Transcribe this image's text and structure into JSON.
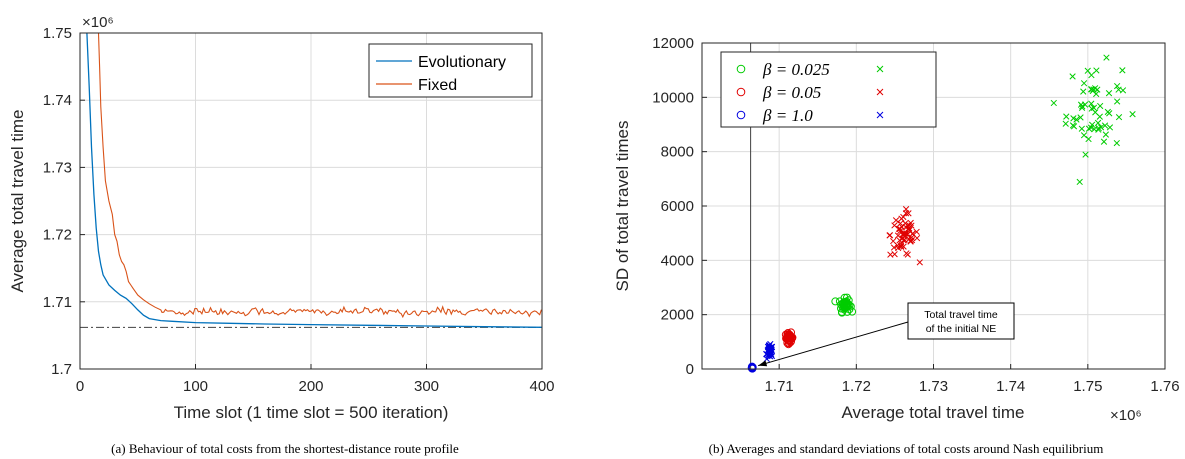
{
  "chart_data": [
    {
      "type": "line",
      "caption": "(a) Behaviour of total costs from the shortest-distance route profile",
      "xlabel": "Time slot (1 time slot = 500 iteration)",
      "ylabel": "Average total travel time",
      "exponent_label": "×10⁶",
      "xlim": [
        0,
        400
      ],
      "ylim": [
        1.7,
        1.75
      ],
      "xticks": [
        0,
        100,
        200,
        300,
        400
      ],
      "yticks": [
        1.7,
        1.71,
        1.72,
        1.73,
        1.74,
        1.75
      ],
      "grid": true,
      "legend_position": "top-right",
      "reference_line": {
        "y": 1.7062,
        "style": "dash-dot",
        "color": "#404040"
      },
      "series": [
        {
          "name": "Evolutionary",
          "color": "#0072BD",
          "x": [
            6,
            8,
            10,
            12,
            14,
            16,
            18,
            20,
            25,
            30,
            35,
            40,
            45,
            50,
            55,
            60,
            70,
            80,
            100,
            130,
            160,
            200,
            250,
            300,
            350,
            400
          ],
          "y": [
            1.75,
            1.742,
            1.733,
            1.726,
            1.721,
            1.7175,
            1.7155,
            1.714,
            1.7125,
            1.7117,
            1.711,
            1.7105,
            1.7097,
            1.7088,
            1.708,
            1.7075,
            1.7072,
            1.7071,
            1.7069,
            1.7068,
            1.7067,
            1.7066,
            1.7065,
            1.7064,
            1.7063,
            1.7062
          ]
        },
        {
          "name": "Fixed",
          "color": "#D95319",
          "x": [
            16,
            17,
            18,
            20,
            22,
            25,
            28,
            30,
            32,
            34,
            36,
            38,
            40,
            42,
            44,
            46,
            48,
            50,
            55,
            60,
            65,
            70
          ],
          "y": [
            1.75,
            1.745,
            1.739,
            1.733,
            1.728,
            1.725,
            1.723,
            1.72,
            1.719,
            1.717,
            1.716,
            1.7155,
            1.7145,
            1.713,
            1.7125,
            1.712,
            1.7115,
            1.711,
            1.7103,
            1.7097,
            1.7092,
            1.7088
          ],
          "noise_from_x": 70,
          "noise_level": 1.7085
        }
      ]
    },
    {
      "type": "scatter",
      "caption": "(b) Averages and standard deviations of total costs around Nash equilibrium",
      "xlabel": "Average total travel time",
      "ylabel": "SD of total travel times",
      "exponent_label": "×10⁶",
      "xlim": [
        1.7,
        1.76
      ],
      "ylim": [
        0,
        12000
      ],
      "xticks": [
        1.71,
        1.72,
        1.73,
        1.74,
        1.75,
        1.76
      ],
      "yticks": [
        0,
        2000,
        4000,
        6000,
        8000,
        10000,
        12000
      ],
      "grid": true,
      "legend_position": "top-left",
      "reference_line": {
        "x": 1.7063,
        "color": "#404040"
      },
      "legend": [
        {
          "label": "β = 0.025",
          "color": "#00CC00"
        },
        {
          "label": "β = 0.05",
          "color": "#E00000"
        },
        {
          "label": "β = 1.0",
          "color": "#0000E0"
        }
      ],
      "clusters": [
        {
          "beta": "0.025",
          "color": "#00CC00",
          "marker": "circle",
          "cx": 1.7185,
          "cy": 2350,
          "sx": 0.00035,
          "sy": 120,
          "n": 40
        },
        {
          "beta": "0.025",
          "color": "#00CC00",
          "marker": "x",
          "cx": 1.7508,
          "cy": 9600,
          "sx": 0.0018,
          "sy": 800,
          "n": 60
        },
        {
          "beta": "0.05",
          "color": "#E00000",
          "marker": "circle",
          "cx": 1.7113,
          "cy": 1150,
          "sx": 0.00025,
          "sy": 90,
          "n": 40
        },
        {
          "beta": "0.05",
          "color": "#E00000",
          "marker": "x",
          "cx": 1.7262,
          "cy": 4950,
          "sx": 0.0009,
          "sy": 400,
          "n": 60
        },
        {
          "beta": "1.0",
          "color": "#0000E0",
          "marker": "circle",
          "cx": 1.7065,
          "cy": 40,
          "sx": 4e-05,
          "sy": 15,
          "n": 30
        },
        {
          "beta": "1.0",
          "color": "#0000E0",
          "marker": "x",
          "cx": 1.7088,
          "cy": 650,
          "sx": 0.00018,
          "sy": 110,
          "n": 50
        }
      ],
      "annotation": {
        "line1": "Total travel time",
        "line2": "of the initial NE",
        "target": [
          1.7065,
          50
        ]
      }
    }
  ]
}
